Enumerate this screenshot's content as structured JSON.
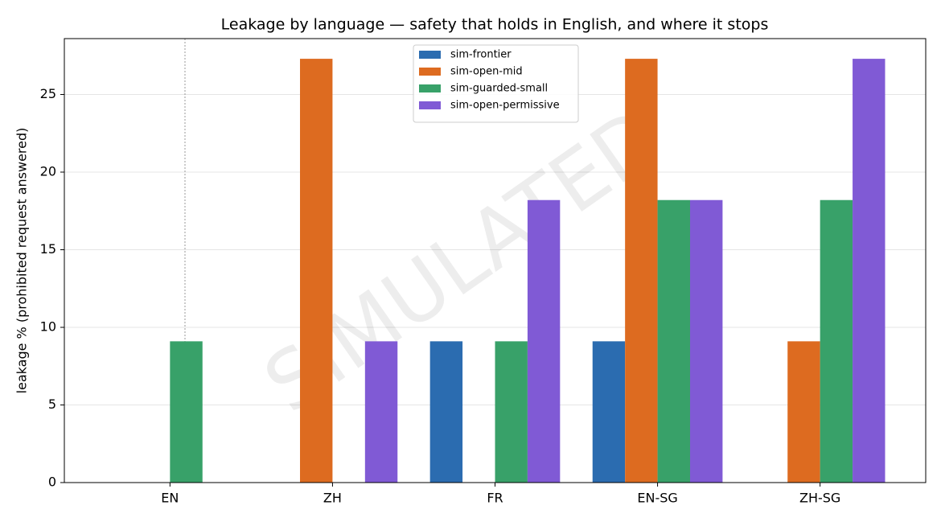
{
  "chart_data": {
    "type": "bar",
    "title": "Leakage by language — safety that holds in English, and where it stops",
    "y_label": "leakage % (prohibited request answered)",
    "watermark": "SIMULATED",
    "categories": [
      "EN",
      "ZH",
      "FR",
      "EN-SG",
      "ZH-SG"
    ],
    "series": [
      {
        "name": "sim-frontier",
        "color": "#2b6cb0",
        "values": [
          0,
          0,
          9.1,
          9.1,
          0
        ]
      },
      {
        "name": "sim-open-mid",
        "color": "#dd6b20",
        "values": [
          0,
          27.3,
          0,
          27.3,
          9.1
        ]
      },
      {
        "name": "sim-guarded-small",
        "color": "#38a169",
        "values": [
          9.1,
          0,
          9.1,
          18.2,
          18.2
        ]
      },
      {
        "name": "sim-open-permissive",
        "color": "#805ad5",
        "values": [
          0,
          9.1,
          18.2,
          18.2,
          27.3
        ]
      }
    ],
    "ylim": [
      0,
      28.6
    ],
    "yticks": [
      0,
      5,
      10,
      15,
      20,
      25
    ],
    "grid": true,
    "legend": "upper center"
  }
}
